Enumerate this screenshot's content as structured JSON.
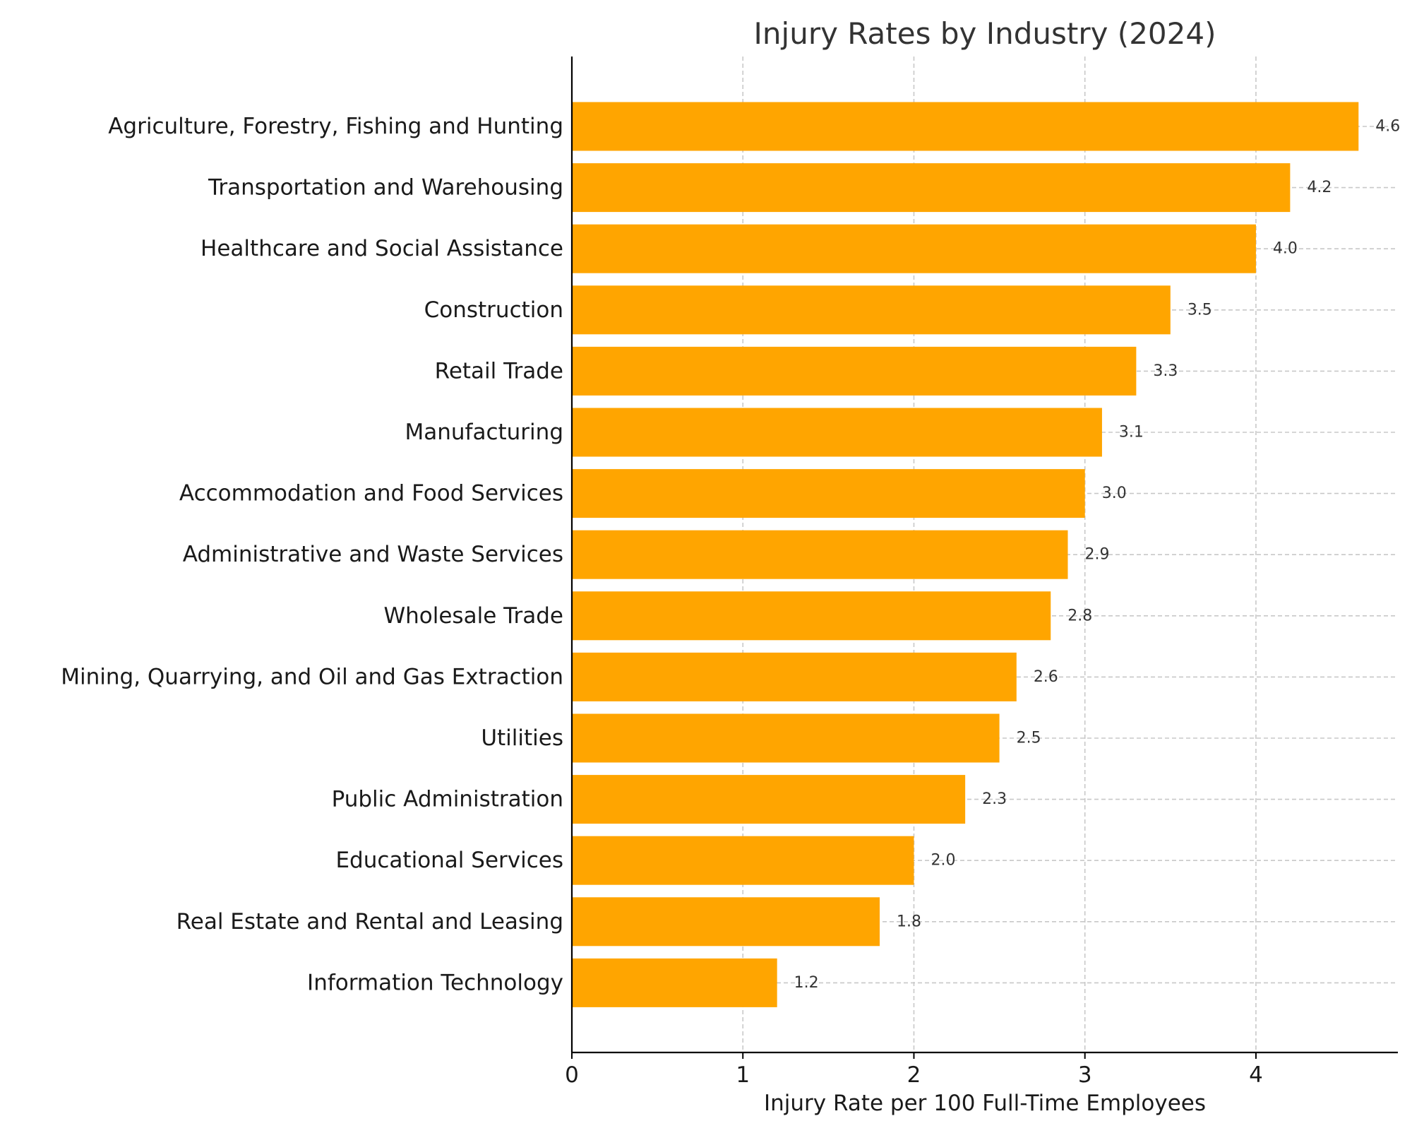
{
  "chart_data": {
    "type": "bar",
    "orientation": "horizontal",
    "title": "Injury Rates by Industry (2024)",
    "xlabel": "Injury Rate per 100 Full-Time Employees",
    "ylabel": "",
    "xlim": [
      0,
      4.83
    ],
    "xticks": [
      0,
      1,
      2,
      3,
      4
    ],
    "xtick_labels": [
      "0",
      "1",
      "2",
      "3",
      "4"
    ],
    "grid": true,
    "bar_color": "#FFA500",
    "categories": [
      "Agriculture, Forestry, Fishing and Hunting",
      "Transportation and Warehousing",
      "Healthcare and Social Assistance",
      "Construction",
      "Retail Trade",
      "Manufacturing",
      "Accommodation and Food Services",
      "Administrative and Waste Services",
      "Wholesale Trade",
      "Mining, Quarrying, and Oil and Gas Extraction",
      "Utilities",
      "Public Administration",
      "Educational Services",
      "Real Estate and Rental and Leasing",
      "Information Technology"
    ],
    "values": [
      4.6,
      4.2,
      4.0,
      3.5,
      3.3,
      3.1,
      3.0,
      2.9,
      2.8,
      2.6,
      2.5,
      2.3,
      2.0,
      1.8,
      1.2
    ],
    "value_labels": [
      "4.6",
      "4.2",
      "4.0",
      "3.5",
      "3.3",
      "3.1",
      "3.0",
      "2.9",
      "2.8",
      "2.6",
      "2.5",
      "2.3",
      "2.0",
      "1.8",
      "1.2"
    ]
  }
}
